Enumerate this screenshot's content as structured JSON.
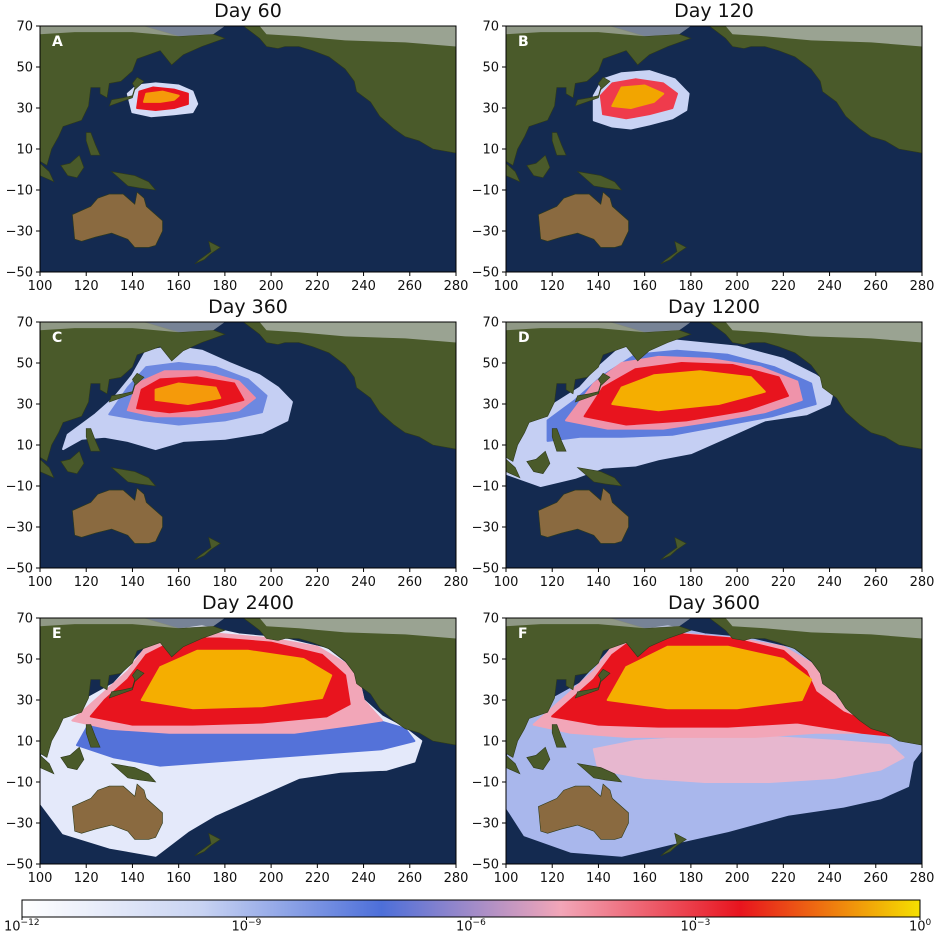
{
  "panels": [
    {
      "label": "A",
      "title": "Day 60",
      "stage": 0
    },
    {
      "label": "B",
      "title": "Day 120",
      "stage": 1
    },
    {
      "label": "C",
      "title": "Day 360",
      "stage": 2
    },
    {
      "label": "D",
      "title": "Day 1200",
      "stage": 3
    },
    {
      "label": "E",
      "title": "Day 2400",
      "stage": 4
    },
    {
      "label": "F",
      "title": "Day 3600",
      "stage": 5
    }
  ],
  "x_ticks": [
    "100",
    "120",
    "140",
    "160",
    "180",
    "200",
    "220",
    "240",
    "260",
    "280"
  ],
  "y_ticks": [
    "70",
    "50",
    "30",
    "10",
    "−10",
    "−30",
    "−50"
  ],
  "colorbar": {
    "ticks": [
      {
        "base": "10",
        "exp": "−12"
      },
      {
        "base": "10",
        "exp": "−9"
      },
      {
        "base": "10",
        "exp": "−6"
      },
      {
        "base": "10",
        "exp": "−3"
      },
      {
        "base": "10",
        "exp": "0"
      }
    ],
    "colors": [
      "#ffffff",
      "#c8d3f2",
      "#4d6fd9",
      "#f2a6b8",
      "#e8141e",
      "#f5e000"
    ]
  },
  "colors": {
    "ocean": "#142a50",
    "land": "#4a5a2a",
    "desert": "#8a6a40"
  }
}
